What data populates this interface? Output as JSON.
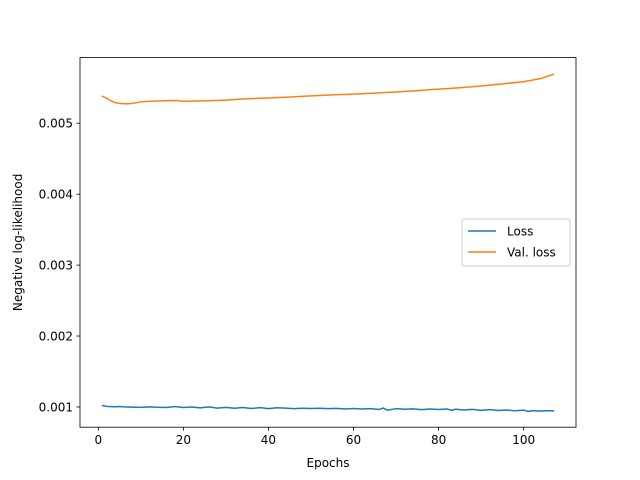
{
  "chart_data": {
    "type": "line",
    "title": "",
    "xlabel": "Epochs",
    "ylabel": "Negative log-likelihood",
    "xlim": [
      -4.3,
      112.3
    ],
    "ylim": [
      0.000715,
      0.005925
    ],
    "x_ticks": [
      0,
      20,
      40,
      60,
      80,
      100
    ],
    "x_tick_labels": [
      "0",
      "20",
      "40",
      "60",
      "80",
      "100"
    ],
    "y_ticks": [
      0.001,
      0.002,
      0.003,
      0.004,
      0.005
    ],
    "y_tick_labels": [
      "0.001",
      "0.002",
      "0.003",
      "0.004",
      "0.005"
    ],
    "grid": false,
    "legend_position": "center-right",
    "series": [
      {
        "name": "Loss",
        "color": "#1f77b4",
        "x": [
          1,
          2,
          3,
          4,
          5,
          6,
          8,
          10,
          12,
          14,
          16,
          18,
          20,
          22,
          24,
          26,
          28,
          30,
          32,
          34,
          36,
          38,
          40,
          42,
          44,
          46,
          48,
          50,
          52,
          54,
          56,
          58,
          60,
          62,
          64,
          66,
          67,
          68,
          70,
          72,
          74,
          76,
          78,
          80,
          82,
          83,
          84,
          86,
          88,
          90,
          92,
          94,
          96,
          98,
          100,
          101,
          102,
          104,
          106,
          107
        ],
        "y": [
          0.00102,
          0.001008,
          0.001005,
          0.001003,
          0.001006,
          0.001002,
          0.000998,
          0.000995,
          0.001002,
          0.000996,
          0.000993,
          0.001006,
          0.000992,
          0.000999,
          0.000988,
          0.001002,
          0.000984,
          0.000995,
          0.000982,
          0.000993,
          0.000978,
          0.000991,
          0.000976,
          0.000989,
          0.000984,
          0.000977,
          0.000983,
          0.000978,
          0.000982,
          0.000976,
          0.000981,
          0.000972,
          0.000979,
          0.000971,
          0.000977,
          0.000965,
          0.000985,
          0.000955,
          0.000976,
          0.000968,
          0.000974,
          0.000962,
          0.000971,
          0.000964,
          0.000972,
          0.000952,
          0.000968,
          0.000958,
          0.000967,
          0.000952,
          0.000962,
          0.000951,
          0.000958,
          0.000946,
          0.000955,
          0.000937,
          0.000948,
          0.000942,
          0.000949,
          0.000944
        ]
      },
      {
        "name": "Val. loss",
        "color": "#ff7f0e",
        "x": [
          1,
          2,
          3,
          4,
          5,
          6,
          7,
          8,
          10,
          12,
          15,
          18,
          20,
          25,
          30,
          35,
          40,
          45,
          50,
          55,
          60,
          65,
          70,
          75,
          80,
          85,
          90,
          95,
          100,
          104,
          107
        ],
        "y": [
          0.00538,
          0.00535,
          0.005315,
          0.00529,
          0.00528,
          0.005275,
          0.005275,
          0.00528,
          0.0053,
          0.00531,
          0.005315,
          0.00532,
          0.00531,
          0.005315,
          0.005325,
          0.005345,
          0.005355,
          0.00537,
          0.005385,
          0.0054,
          0.00541,
          0.005425,
          0.00544,
          0.00546,
          0.00548,
          0.0055,
          0.005525,
          0.005555,
          0.005585,
          0.00563,
          0.00569
        ]
      }
    ]
  }
}
